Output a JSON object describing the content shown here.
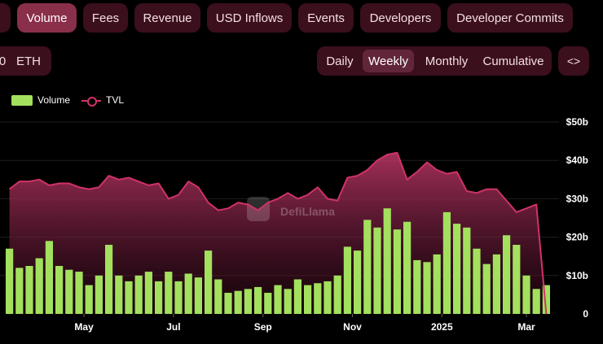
{
  "tabs": [
    {
      "label": "",
      "active": false
    },
    {
      "label": "Volume",
      "active": true
    },
    {
      "label": "Fees",
      "active": false
    },
    {
      "label": "Revenue",
      "active": false
    },
    {
      "label": "USD Inflows",
      "active": false
    },
    {
      "label": "Events",
      "active": false
    },
    {
      "label": "Developers",
      "active": false
    },
    {
      "label": "Developer Commits",
      "active": false
    }
  ],
  "denomination": {
    "partial_label": "0",
    "eth_label": "ETH"
  },
  "intervals": [
    {
      "label": "Daily",
      "active": false
    },
    {
      "label": "Weekly",
      "active": true
    },
    {
      "label": "Monthly",
      "active": false
    },
    {
      "label": "Cumulative",
      "active": false
    }
  ],
  "embed_icon": "<>",
  "legend": {
    "volume": "Volume",
    "tvl": "TVL"
  },
  "watermark": "DefiLlama",
  "colors": {
    "volume": "#a3e05e",
    "tvl": "#d0326a",
    "tab_bg": "#3b0f1c",
    "tab_active": "#8a2f4a"
  },
  "chart_data": {
    "type": "bar+area",
    "x_tick_labels": [
      "May",
      "Jul",
      "Sep",
      "Nov",
      "2025",
      "Mar"
    ],
    "y_tick_labels": [
      "$50b",
      "$40b",
      "$30b",
      "$20b",
      "$10b",
      "0"
    ],
    "ylim": [
      0,
      50
    ],
    "grid": true,
    "legend_position": "top-left",
    "series": [
      {
        "name": "Volume",
        "type": "bar",
        "unit": "$b",
        "values": [
          17,
          12,
          12.5,
          14.5,
          19,
          12.5,
          11.5,
          11,
          7.5,
          10,
          18,
          10,
          8.5,
          10,
          11,
          8.5,
          11,
          8.5,
          10.5,
          9.5,
          16.5,
          9,
          5.5,
          6,
          6.5,
          7,
          5.5,
          7.5,
          6.5,
          9,
          7.5,
          8,
          8.5,
          10,
          17.5,
          16.5,
          24.5,
          22.5,
          27.5,
          22,
          24,
          14,
          13.5,
          15.5,
          26.5,
          23.5,
          22.5,
          17,
          13,
          15.5,
          20.5,
          18,
          10,
          6.5,
          7.5
        ]
      },
      {
        "name": "TVL",
        "type": "area",
        "unit": "$b",
        "values": [
          32.5,
          34.5,
          34.5,
          35,
          33.5,
          34,
          34,
          33,
          32.5,
          33,
          36,
          35,
          35.5,
          34.5,
          33.5,
          34,
          30,
          31,
          34.5,
          33,
          29,
          27,
          27.5,
          29,
          28.5,
          27,
          29,
          30,
          31.5,
          30,
          31,
          33,
          30,
          29.5,
          35.5,
          36,
          37.5,
          40,
          41.5,
          42,
          35,
          37,
          39.5,
          37.5,
          36.5,
          37,
          32,
          31.5,
          32.5,
          32.5,
          29.5,
          26.5,
          27.5,
          28.5,
          0
        ]
      }
    ]
  }
}
